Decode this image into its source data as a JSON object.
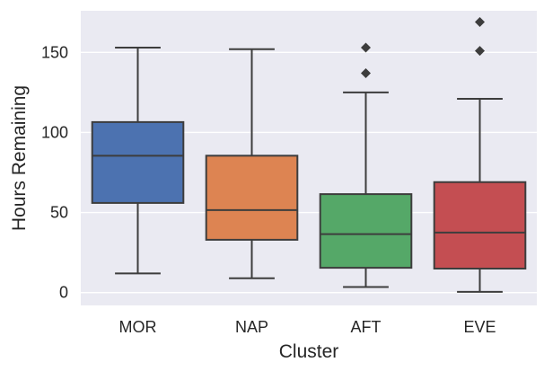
{
  "chart_data": {
    "type": "boxplot",
    "title": "",
    "xlabel": "Cluster",
    "ylabel": "Hours Remaining",
    "ylim": [
      -8,
      176
    ],
    "yticks": [
      0,
      50,
      100,
      150
    ],
    "grid": true,
    "categories": [
      "MOR",
      "NAP",
      "AFT",
      "EVE"
    ],
    "boxes": [
      {
        "name": "MOR",
        "whisker_low": 12,
        "q1": 56,
        "median": 85.5,
        "q3": 106.5,
        "whisker_high": 153,
        "outliers": [],
        "color": "#4c72b0"
      },
      {
        "name": "NAP",
        "whisker_low": 9,
        "q1": 33,
        "median": 51.5,
        "q3": 85.5,
        "whisker_high": 152,
        "outliers": [],
        "color": "#dd8452"
      },
      {
        "name": "AFT",
        "whisker_low": 3.5,
        "q1": 15.5,
        "median": 36.5,
        "q3": 61.5,
        "whisker_high": 125,
        "outliers": [
          137,
          153
        ],
        "color": "#55a868"
      },
      {
        "name": "EVE",
        "whisker_low": 0.5,
        "q1": 15,
        "median": 37.5,
        "q3": 69,
        "whisker_high": 121,
        "outliers": [
          151,
          169
        ],
        "color": "#c44e52"
      }
    ]
  },
  "colors": {
    "plot_background": "#eaeaf2",
    "grid": "#ffffff",
    "line": "#3d3d3d",
    "text": "#262626"
  }
}
